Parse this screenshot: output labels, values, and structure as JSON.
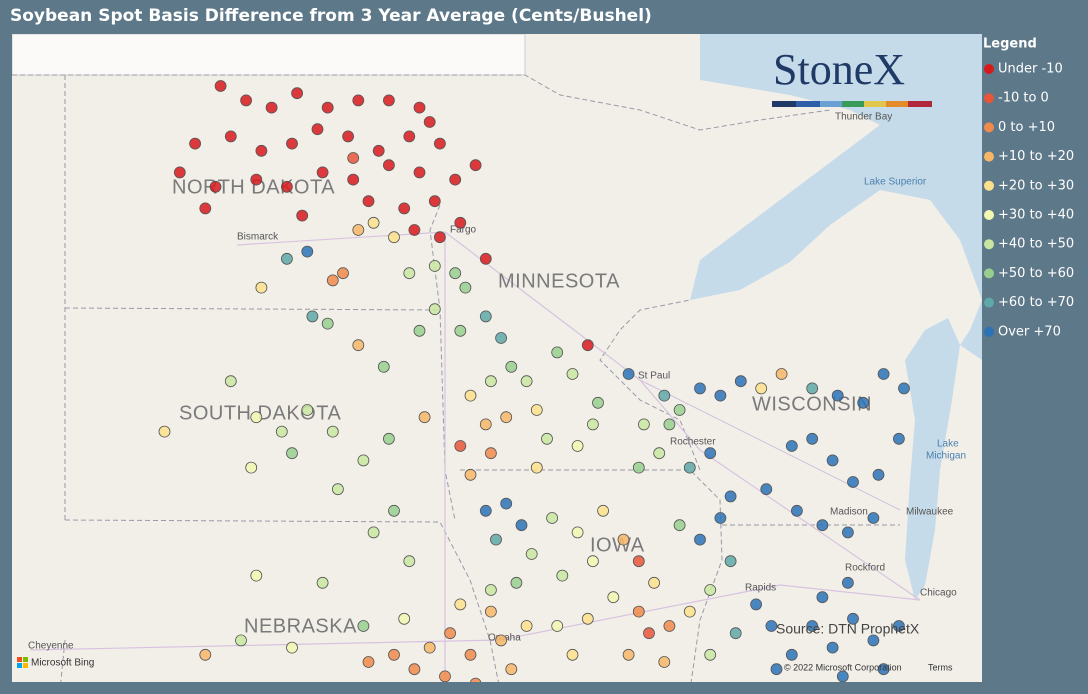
{
  "title": "Soybean Spot Basis Difference from 3 Year Average (Cents/Bushel)",
  "brand": "StoneX",
  "legend": {
    "title": "Legend",
    "items": [
      {
        "label": "Under -10",
        "color": "#d7191c"
      },
      {
        "label": "-10 to 0",
        "color": "#e8553a"
      },
      {
        "label": "0 to +10",
        "color": "#f08a4b"
      },
      {
        "label": "+10 to +20",
        "color": "#f7b667"
      },
      {
        "label": "+20 to +30",
        "color": "#fde08b"
      },
      {
        "label": "+30 to +40",
        "color": "#f3f7b0"
      },
      {
        "label": "+40 to +50",
        "color": "#c9e6a0"
      },
      {
        "label": "+50 to +60",
        "color": "#98cf8f"
      },
      {
        "label": "+60 to +70",
        "color": "#5ea8a8"
      },
      {
        "label": "Over +70",
        "color": "#2b72b6"
      }
    ]
  },
  "labels": {
    "states": [
      "NORTH DAKOTA",
      "MINNESOTA",
      "SOUTH DAKOTA",
      "WISCONSIN",
      "NEBRASKA",
      "IOWA"
    ],
    "cities": [
      "Bismarck",
      "Fargo",
      "St Paul",
      "Rochester",
      "Thunder Bay",
      "Madison",
      "Milwaukee",
      "Rockford",
      "Chicago",
      "Cheyenne",
      "Omaha",
      "Rapids"
    ],
    "water": [
      "Lake Superior",
      [
        "Lake",
        "Michigan"
      ]
    ]
  },
  "footer": {
    "source": "Source: DTN ProphetX",
    "bing": "Microsoft Bing",
    "copyright": "© 2022 Microsoft Corporation",
    "terms": "Terms"
  },
  "points": [
    [
      -101.2,
      48.9,
      0
    ],
    [
      -100.7,
      48.7,
      0
    ],
    [
      -100.2,
      48.6,
      0
    ],
    [
      -99.7,
      48.8,
      0
    ],
    [
      -99.1,
      48.6,
      0
    ],
    [
      -98.5,
      48.7,
      0
    ],
    [
      -97.9,
      48.7,
      0
    ],
    [
      -97.3,
      48.6,
      0
    ],
    [
      -101.7,
      48.1,
      0
    ],
    [
      -101.0,
      48.2,
      0
    ],
    [
      -100.4,
      48.0,
      0
    ],
    [
      -99.8,
      48.1,
      0
    ],
    [
      -99.3,
      48.3,
      0
    ],
    [
      -98.7,
      48.2,
      0
    ],
    [
      -98.1,
      48.0,
      0
    ],
    [
      -97.5,
      48.2,
      0
    ],
    [
      -96.9,
      48.1,
      0
    ],
    [
      -102.0,
      47.7,
      0
    ],
    [
      -101.3,
      47.5,
      0
    ],
    [
      -100.5,
      47.6,
      0
    ],
    [
      -99.9,
      47.5,
      0
    ],
    [
      -99.2,
      47.7,
      0
    ],
    [
      -98.6,
      47.6,
      0
    ],
    [
      -97.9,
      47.8,
      0
    ],
    [
      -97.3,
      47.7,
      0
    ],
    [
      -96.6,
      47.6,
      0
    ],
    [
      -101.5,
      47.2,
      0
    ],
    [
      -99.6,
      47.1,
      0
    ],
    [
      -98.3,
      47.3,
      0
    ],
    [
      -97.6,
      47.2,
      0
    ],
    [
      -97.0,
      47.3,
      0
    ],
    [
      -96.5,
      47.0,
      0
    ],
    [
      -97.4,
      46.9,
      0
    ],
    [
      -96.9,
      46.8,
      0
    ],
    [
      -96.0,
      46.5,
      0
    ],
    [
      -98.6,
      47.9,
      1
    ],
    [
      -97.1,
      48.4,
      0
    ],
    [
      -96.2,
      47.8,
      0
    ],
    [
      -99.5,
      46.6,
      9
    ],
    [
      -99.9,
      46.5,
      8
    ],
    [
      -98.2,
      47.0,
      4
    ],
    [
      -98.5,
      46.9,
      3
    ],
    [
      -97.8,
      46.8,
      4
    ],
    [
      -97.5,
      46.3,
      6
    ],
    [
      -97.0,
      46.4,
      6
    ],
    [
      -96.6,
      46.3,
      7
    ],
    [
      -98.8,
      46.3,
      2
    ],
    [
      -99.0,
      46.2,
      2
    ],
    [
      -100.4,
      46.1,
      4
    ],
    [
      -99.1,
      45.6,
      7
    ],
    [
      -99.4,
      45.7,
      8
    ],
    [
      -98.5,
      45.3,
      3
    ],
    [
      -101.0,
      44.8,
      6
    ],
    [
      -98.0,
      45.0,
      7
    ],
    [
      -97.3,
      45.5,
      7
    ],
    [
      -97.0,
      45.8,
      6
    ],
    [
      -96.5,
      45.5,
      7
    ],
    [
      -102.3,
      44.1,
      4
    ],
    [
      -100.5,
      44.3,
      5
    ],
    [
      -100.0,
      44.1,
      6
    ],
    [
      -99.5,
      44.4,
      6
    ],
    [
      -99.0,
      44.1,
      6
    ],
    [
      -98.4,
      43.7,
      6
    ],
    [
      -100.6,
      43.6,
      5
    ],
    [
      -99.8,
      43.8,
      7
    ],
    [
      -98.9,
      43.3,
      6
    ],
    [
      -97.9,
      44.0,
      7
    ],
    [
      -97.2,
      44.3,
      3
    ],
    [
      -97.8,
      43.0,
      7
    ],
    [
      -98.2,
      42.7,
      6
    ],
    [
      -97.5,
      42.3,
      6
    ],
    [
      -99.2,
      42.0,
      6
    ],
    [
      -100.5,
      42.1,
      5
    ],
    [
      -96.3,
      44.6,
      4
    ],
    [
      -95.9,
      44.8,
      6
    ],
    [
      -95.5,
      45.0,
      7
    ],
    [
      -95.2,
      44.8,
      6
    ],
    [
      -95.6,
      44.3,
      3
    ],
    [
      -95.0,
      44.4,
      4
    ],
    [
      -94.6,
      45.2,
      7
    ],
    [
      -94.3,
      44.9,
      6
    ],
    [
      -93.8,
      44.5,
      7
    ],
    [
      -94.2,
      43.9,
      5
    ],
    [
      -93.9,
      44.2,
      6
    ],
    [
      -95.9,
      43.8,
      2
    ],
    [
      -96.5,
      43.9,
      1
    ],
    [
      -96.3,
      43.5,
      3
    ],
    [
      -95.0,
      43.6,
      4
    ],
    [
      -94.8,
      44.0,
      6
    ],
    [
      -96.0,
      44.2,
      3
    ],
    [
      -94.0,
      45.3,
      0
    ],
    [
      -95.7,
      45.4,
      8
    ],
    [
      -96.0,
      45.7,
      8
    ],
    [
      -96.4,
      46.1,
      7
    ],
    [
      -93.2,
      44.9,
      9
    ],
    [
      -92.5,
      44.6,
      8
    ],
    [
      -92.2,
      44.4,
      7
    ],
    [
      -91.8,
      44.7,
      9
    ],
    [
      -91.4,
      44.6,
      9
    ],
    [
      -91.0,
      44.8,
      9
    ],
    [
      -90.6,
      44.7,
      4
    ],
    [
      -90.2,
      44.9,
      3
    ],
    [
      -89.6,
      44.7,
      8
    ],
    [
      -89.1,
      44.6,
      9
    ],
    [
      -88.6,
      44.5,
      9
    ],
    [
      -88.2,
      44.9,
      9
    ],
    [
      -87.8,
      44.7,
      9
    ],
    [
      -90.0,
      43.9,
      9
    ],
    [
      -89.6,
      44.0,
      9
    ],
    [
      -89.2,
      43.7,
      9
    ],
    [
      -88.8,
      43.4,
      9
    ],
    [
      -88.3,
      43.5,
      9
    ],
    [
      -87.9,
      44.0,
      9
    ],
    [
      -90.5,
      43.3,
      9
    ],
    [
      -89.9,
      43.0,
      9
    ],
    [
      -89.4,
      42.8,
      9
    ],
    [
      -88.9,
      42.7,
      9
    ],
    [
      -88.4,
      42.9,
      9
    ],
    [
      -91.2,
      43.2,
      9
    ],
    [
      -91.6,
      43.8,
      9
    ],
    [
      -92.0,
      43.6,
      8
    ],
    [
      -92.6,
      43.8,
      6
    ],
    [
      -93.0,
      43.6,
      7
    ],
    [
      -92.4,
      44.2,
      7
    ],
    [
      -92.9,
      44.2,
      6
    ],
    [
      -96.0,
      43.0,
      9
    ],
    [
      -95.6,
      43.1,
      9
    ],
    [
      -95.3,
      42.8,
      9
    ],
    [
      -95.8,
      42.6,
      8
    ],
    [
      -95.1,
      42.4,
      6
    ],
    [
      -94.7,
      42.9,
      6
    ],
    [
      -94.2,
      42.7,
      5
    ],
    [
      -93.7,
      43.0,
      4
    ],
    [
      -93.3,
      42.6,
      3
    ],
    [
      -93.9,
      42.3,
      5
    ],
    [
      -94.5,
      42.1,
      6
    ],
    [
      -95.4,
      42.0,
      7
    ],
    [
      -95.9,
      41.9,
      6
    ],
    [
      -93.0,
      42.3,
      1
    ],
    [
      -92.7,
      42.0,
      4
    ],
    [
      -93.5,
      41.8,
      5
    ],
    [
      -93.0,
      41.6,
      2
    ],
    [
      -92.4,
      41.4,
      2
    ],
    [
      -92.8,
      41.3,
      1
    ],
    [
      -92.0,
      41.6,
      4
    ],
    [
      -91.6,
      41.9,
      6
    ],
    [
      -91.2,
      42.3,
      8
    ],
    [
      -91.8,
      42.6,
      9
    ],
    [
      -91.4,
      42.9,
      9
    ],
    [
      -92.2,
      42.8,
      7
    ],
    [
      -94.0,
      41.5,
      4
    ],
    [
      -94.6,
      41.4,
      5
    ],
    [
      -95.2,
      41.4,
      4
    ],
    [
      -95.7,
      41.2,
      3
    ],
    [
      -94.3,
      41.0,
      4
    ],
    [
      -93.2,
      41.0,
      3
    ],
    [
      -92.5,
      40.9,
      3
    ],
    [
      -91.6,
      41.0,
      6
    ],
    [
      -91.1,
      41.3,
      8
    ],
    [
      -90.7,
      41.7,
      9
    ],
    [
      -90.4,
      41.4,
      9
    ],
    [
      -90.0,
      41.0,
      9
    ],
    [
      -89.6,
      41.4,
      9
    ],
    [
      -89.2,
      41.1,
      9
    ],
    [
      -88.8,
      41.5,
      9
    ],
    [
      -88.4,
      41.2,
      9
    ],
    [
      -87.9,
      41.4,
      9
    ],
    [
      -89.4,
      41.8,
      9
    ],
    [
      -88.9,
      42.0,
      9
    ],
    [
      -90.3,
      40.8,
      9
    ],
    [
      -89.0,
      40.7,
      9
    ],
    [
      -88.2,
      40.8,
      9
    ],
    [
      -101.5,
      41.0,
      3
    ],
    [
      -100.8,
      41.2,
      6
    ],
    [
      -99.8,
      41.1,
      5
    ],
    [
      -98.4,
      41.4,
      7
    ],
    [
      -97.6,
      41.5,
      5
    ],
    [
      -97.1,
      41.1,
      3
    ],
    [
      -96.7,
      41.3,
      2
    ],
    [
      -96.3,
      41.0,
      2
    ],
    [
      -97.8,
      41.0,
      2
    ],
    [
      -98.3,
      40.9,
      2
    ],
    [
      -97.4,
      40.8,
      2
    ],
    [
      -96.8,
      40.7,
      2
    ],
    [
      -96.2,
      40.6,
      2
    ],
    [
      -95.9,
      41.6,
      3
    ],
    [
      -96.5,
      41.7,
      4
    ],
    [
      -95.5,
      40.8,
      3
    ]
  ]
}
